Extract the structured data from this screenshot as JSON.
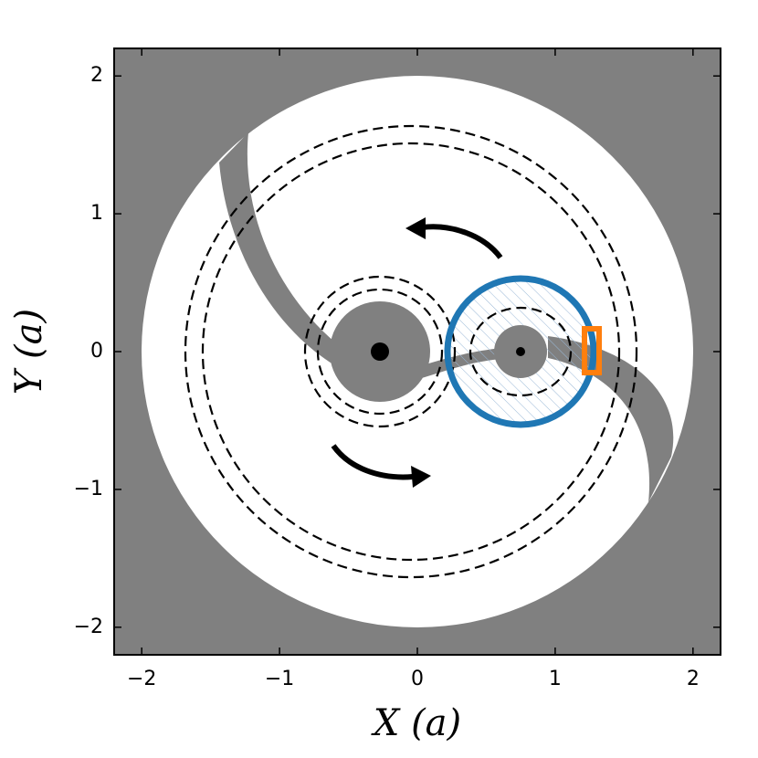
{
  "chart_data": {
    "type": "diagram",
    "xlabel": "X (a)",
    "ylabel": "Y (a)",
    "xlim": [
      -2.2,
      2.2
    ],
    "ylim": [
      -2.2,
      2.2
    ],
    "xticks": [
      {
        "value": -2,
        "label": "−2"
      },
      {
        "value": -1,
        "label": "−1"
      },
      0,
      1,
      2
    ],
    "yticks": [
      {
        "value": -2,
        "label": "−2"
      },
      {
        "value": -1,
        "label": "−1"
      },
      0,
      1,
      2
    ]
  }
}
